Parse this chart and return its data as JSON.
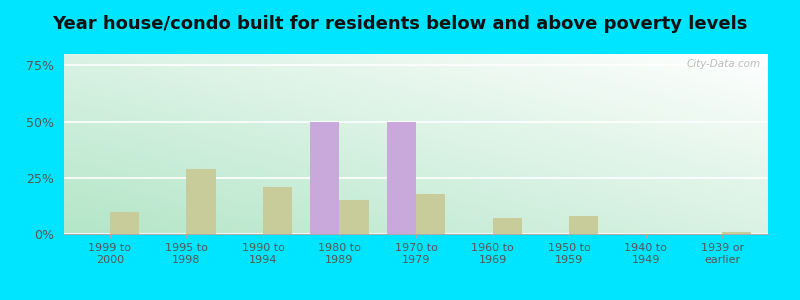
{
  "title": "Year house/condo built for residents below and above poverty levels",
  "categories": [
    "1999 to\n2000",
    "1995 to\n1998",
    "1990 to\n1994",
    "1980 to\n1989",
    "1970 to\n1979",
    "1960 to\n1969",
    "1950 to\n1959",
    "1940 to\n1949",
    "1939 or\nearlier"
  ],
  "below_poverty": [
    0,
    0,
    0,
    50,
    50,
    0,
    0,
    0,
    0
  ],
  "above_poverty": [
    10,
    29,
    21,
    15,
    18,
    7,
    8,
    0,
    1
  ],
  "below_color": "#c9a8dc",
  "above_color": "#c8cc9a",
  "yticks": [
    0,
    25,
    50,
    75
  ],
  "ylim": [
    0,
    80
  ],
  "outer_bg": "#00e5ff",
  "title_fontsize": 13,
  "watermark": "City-Data.com",
  "grad_colors": [
    "#c8e6c9",
    "#f1faf1",
    "#e8f5e9",
    "#ffffff"
  ],
  "bar_width": 0.38
}
